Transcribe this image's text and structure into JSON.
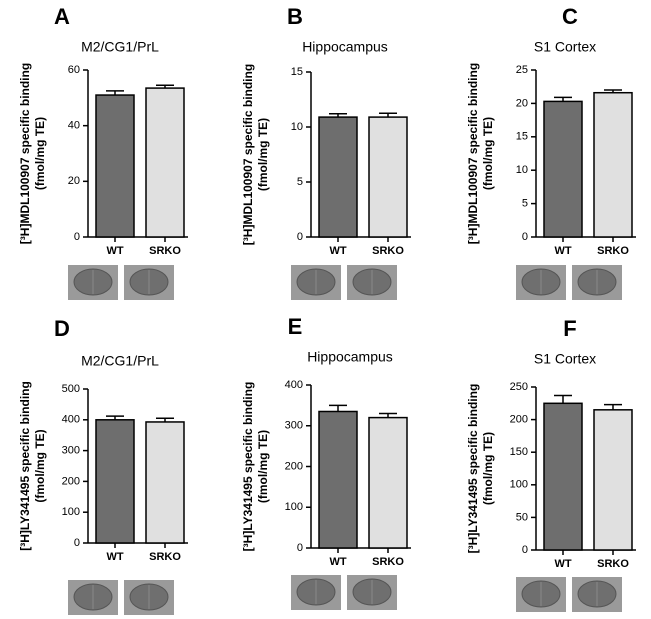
{
  "chart_data": [
    {
      "type": "bar",
      "panel": "A",
      "title": "M2/CG1/PrL",
      "ylabel": [
        "[³H]MDL100907 specific binding",
        "(fmol/mg TE)"
      ],
      "categories": [
        "WT",
        "SRKO"
      ],
      "values": [
        51,
        53.5
      ],
      "errors": [
        1.5,
        1
      ],
      "colors": [
        "#6e6e6e",
        "#e0e0e0"
      ],
      "ylim": [
        0,
        60
      ],
      "yticks": [
        0,
        20,
        40,
        60
      ]
    },
    {
      "type": "bar",
      "panel": "B",
      "title": "Hippocampus",
      "ylabel": [
        "[³H]MDL100907 specific binding",
        "(fmol/mg TE)"
      ],
      "categories": [
        "WT",
        "SRKO"
      ],
      "values": [
        10.9,
        10.9
      ],
      "errors": [
        0.3,
        0.35
      ],
      "colors": [
        "#6e6e6e",
        "#e0e0e0"
      ],
      "ylim": [
        0,
        15
      ],
      "yticks": [
        0,
        5,
        10,
        15
      ]
    },
    {
      "type": "bar",
      "panel": "C",
      "title": "S1 Cortex",
      "ylabel": [
        "[³H]MDL100907 specific binding",
        "(fmol/mg TE)"
      ],
      "categories": [
        "WT",
        "SRKO"
      ],
      "values": [
        20.3,
        21.6
      ],
      "errors": [
        0.6,
        0.4
      ],
      "colors": [
        "#6e6e6e",
        "#e0e0e0"
      ],
      "ylim": [
        0,
        25
      ],
      "yticks": [
        0,
        5,
        10,
        15,
        20,
        25
      ]
    },
    {
      "type": "bar",
      "panel": "D",
      "title": "M2/CG1/PrL",
      "ylabel": [
        "[³H]LY341495 specific binding",
        "(fmol/mg TE)"
      ],
      "categories": [
        "WT",
        "SRKO"
      ],
      "values": [
        400,
        393
      ],
      "errors": [
        12,
        12
      ],
      "colors": [
        "#6e6e6e",
        "#e0e0e0"
      ],
      "ylim": [
        0,
        500
      ],
      "yticks": [
        0,
        100,
        200,
        300,
        400,
        500
      ]
    },
    {
      "type": "bar",
      "panel": "E",
      "title": "Hippocampus",
      "ylabel": [
        "[³H]LY341495 specific binding",
        "(fmol/mg TE)"
      ],
      "categories": [
        "WT",
        "SRKO"
      ],
      "values": [
        335,
        320
      ],
      "errors": [
        15,
        10
      ],
      "colors": [
        "#6e6e6e",
        "#e0e0e0"
      ],
      "ylim": [
        0,
        400
      ],
      "yticks": [
        0,
        100,
        200,
        300,
        400
      ]
    },
    {
      "type": "bar",
      "panel": "F",
      "title": "S1 Cortex",
      "ylabel": [
        "[³H]LY341495 specific binding",
        "(fmol/mg TE)"
      ],
      "categories": [
        "WT",
        "SRKO"
      ],
      "values": [
        225,
        215
      ],
      "errors": [
        12,
        8
      ],
      "colors": [
        "#6e6e6e",
        "#e0e0e0"
      ],
      "ylim": [
        0,
        250
      ],
      "yticks": [
        0,
        50,
        100,
        150,
        200,
        250
      ]
    }
  ]
}
